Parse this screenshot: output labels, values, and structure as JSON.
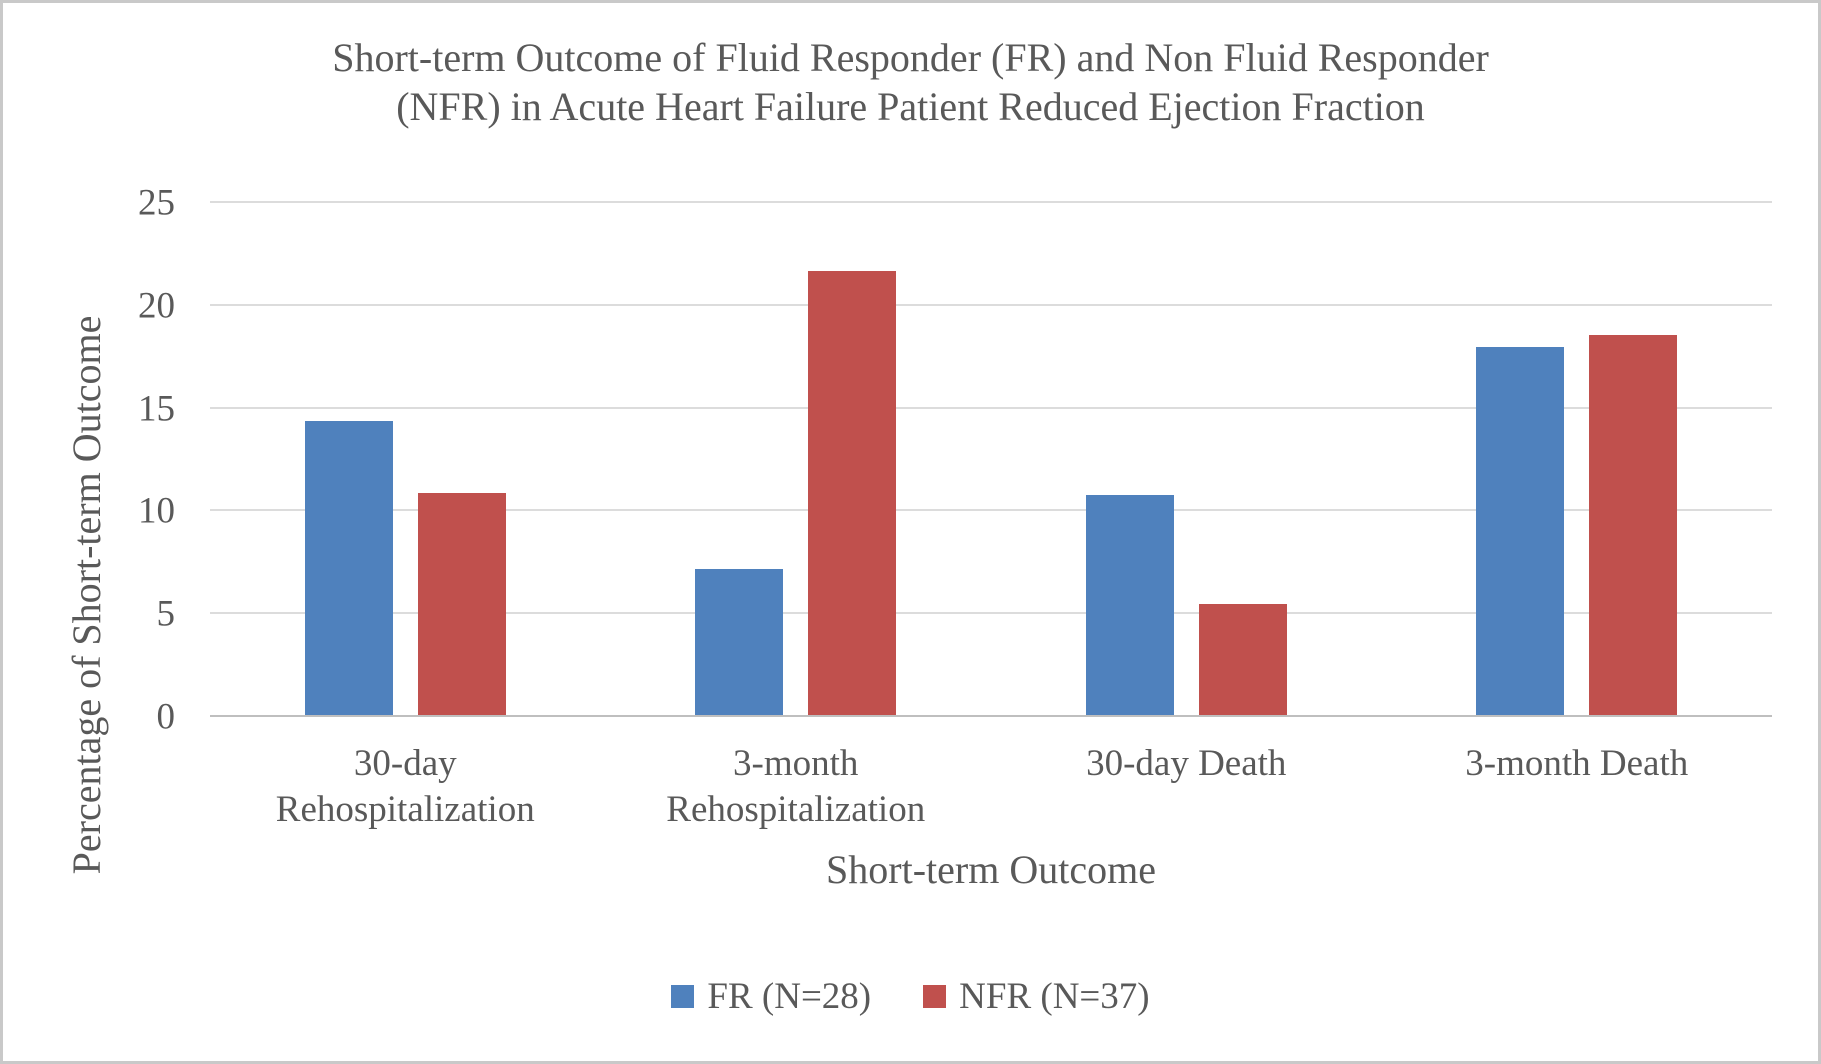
{
  "chart_data": {
    "type": "bar",
    "title": "Short-term Outcome of Fluid Responder (FR) and Non Fluid Responder (NFR) in Acute Heart Failure Patient Reduced Ejection Fraction",
    "title_lines": [
      "Short-term Outcome of Fluid Responder (FR) and Non Fluid Responder",
      "(NFR) in Acute Heart Failure Patient Reduced Ejection Fraction"
    ],
    "xlabel": "Short-term Outcome",
    "ylabel": "Percentage of Short-term Outcome",
    "categories": [
      "30-day Rehospitalization",
      "3-month Rehospitalization",
      "30-day Death",
      "3-month Death"
    ],
    "series": [
      {
        "name": "FR (N=28)",
        "color": "#4F81BD",
        "values": [
          14.3,
          7.1,
          10.7,
          17.9
        ]
      },
      {
        "name": "NFR (N=37)",
        "color": "#C0504D",
        "values": [
          10.8,
          21.6,
          5.4,
          18.5
        ]
      }
    ],
    "ylim": [
      0,
      25
    ],
    "yticks": [
      0,
      5,
      10,
      15,
      20,
      25
    ],
    "grid": true,
    "legend_position": "bottom"
  },
  "colors": {
    "text": "#595959",
    "gridline": "#dcdcdc",
    "axis_line": "#bfbfbf",
    "frame_border": "#c9c9c9",
    "background": "#ffffff"
  }
}
